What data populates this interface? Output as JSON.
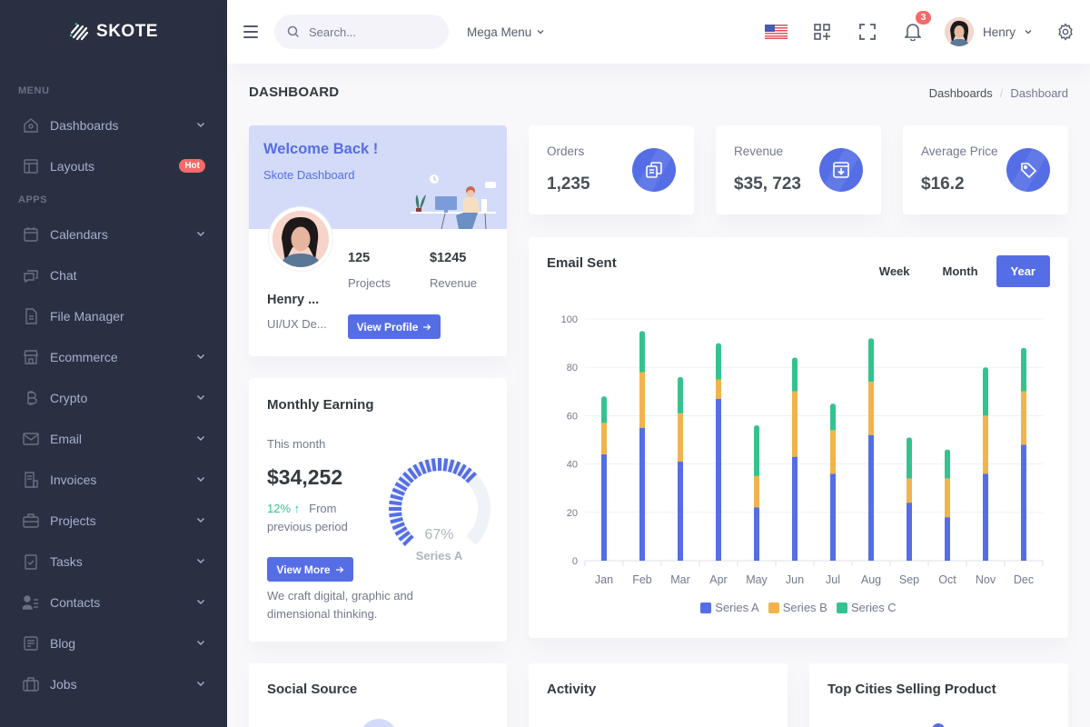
{
  "brand": {
    "name": "SKOTE"
  },
  "sidebar": {
    "sections": [
      {
        "title": "Menu",
        "items": [
          {
            "label": "Dashboards",
            "icon": "home-icon",
            "chevron": true
          },
          {
            "label": "Layouts",
            "icon": "layout-icon",
            "badge": "Hot"
          }
        ]
      },
      {
        "title": "Apps",
        "items": [
          {
            "label": "Calendars",
            "icon": "calendar-icon",
            "chevron": true
          },
          {
            "label": "Chat",
            "icon": "chat-icon"
          },
          {
            "label": "File Manager",
            "icon": "file-icon"
          },
          {
            "label": "Ecommerce",
            "icon": "store-icon",
            "chevron": true
          },
          {
            "label": "Crypto",
            "icon": "bitcoin-icon",
            "chevron": true
          },
          {
            "label": "Email",
            "icon": "envelope-icon",
            "chevron": true
          },
          {
            "label": "Invoices",
            "icon": "receipt-icon",
            "chevron": true
          },
          {
            "label": "Projects",
            "icon": "briefcase-icon",
            "chevron": true
          },
          {
            "label": "Tasks",
            "icon": "task-icon",
            "chevron": true
          },
          {
            "label": "Contacts",
            "icon": "contacts-icon",
            "chevron": true
          },
          {
            "label": "Blog",
            "icon": "blog-icon",
            "chevron": true
          },
          {
            "label": "Jobs",
            "icon": "jobs-icon",
            "chevron": true
          }
        ]
      }
    ]
  },
  "topbar": {
    "search_placeholder": "Search...",
    "mega_menu": "Mega Menu",
    "notification_count": "3",
    "user_name": "Henry"
  },
  "page": {
    "title": "DASHBOARD",
    "breadcrumb": [
      "Dashboards",
      "Dashboard"
    ]
  },
  "welcome": {
    "title": "Welcome Back !",
    "subtitle": "Skote Dashboard",
    "name": "Henry ...",
    "role": "UI/UX De...",
    "projects_value": "125",
    "projects_label": "Projects",
    "revenue_value": "$1245",
    "revenue_label": "Revenue",
    "button": "View Profile"
  },
  "stats": [
    {
      "label": "Orders",
      "value": "1,235",
      "icon": "copy-icon"
    },
    {
      "label": "Revenue",
      "value": "$35, 723",
      "icon": "archive-in-icon"
    },
    {
      "label": "Average Price",
      "value": "$16.2",
      "icon": "tag-icon"
    }
  ],
  "monthly_earning": {
    "title": "Monthly Earning",
    "period": "This month",
    "amount": "$34,252",
    "change_pct": "12%",
    "change_text": "From previous period",
    "button": "View More",
    "description": "We craft digital, graphic and dimensional thinking.",
    "gauge_value": "67%",
    "gauge_label": "Series A"
  },
  "email_sent": {
    "title": "Email Sent",
    "tabs": [
      "Week",
      "Month",
      "Year"
    ],
    "active_tab": "Year"
  },
  "colors": {
    "primary": "#556ee6",
    "series_a": "#556ee6",
    "series_b": "#f1b44c",
    "series_c": "#34c38f",
    "success": "#34c38f",
    "danger": "#f46a6a",
    "sidebar_bg": "#2a3042"
  },
  "chart_data": {
    "type": "bar",
    "stacked": true,
    "title": "Email Sent",
    "categories": [
      "Jan",
      "Feb",
      "Mar",
      "Apr",
      "May",
      "Jun",
      "Jul",
      "Aug",
      "Sep",
      "Oct",
      "Nov",
      "Dec"
    ],
    "series": [
      {
        "name": "Series A",
        "color": "#556ee6",
        "values": [
          44,
          55,
          41,
          67,
          22,
          43,
          36,
          52,
          24,
          18,
          36,
          48
        ]
      },
      {
        "name": "Series B",
        "color": "#f1b44c",
        "values": [
          13,
          23,
          20,
          8,
          13,
          27,
          18,
          22,
          10,
          16,
          24,
          22
        ]
      },
      {
        "name": "Series C",
        "color": "#34c38f",
        "values": [
          11,
          17,
          15,
          15,
          21,
          14,
          11,
          18,
          17,
          12,
          20,
          18
        ]
      }
    ],
    "yticks": [
      0,
      20,
      40,
      60,
      80,
      100
    ],
    "ylim": [
      0,
      100
    ],
    "xlabel": "",
    "ylabel": "",
    "grid": true,
    "legend_position": "bottom"
  },
  "bottom_cards": [
    {
      "title": "Social Source"
    },
    {
      "title": "Activity"
    },
    {
      "title": "Top Cities Selling Product"
    }
  ]
}
